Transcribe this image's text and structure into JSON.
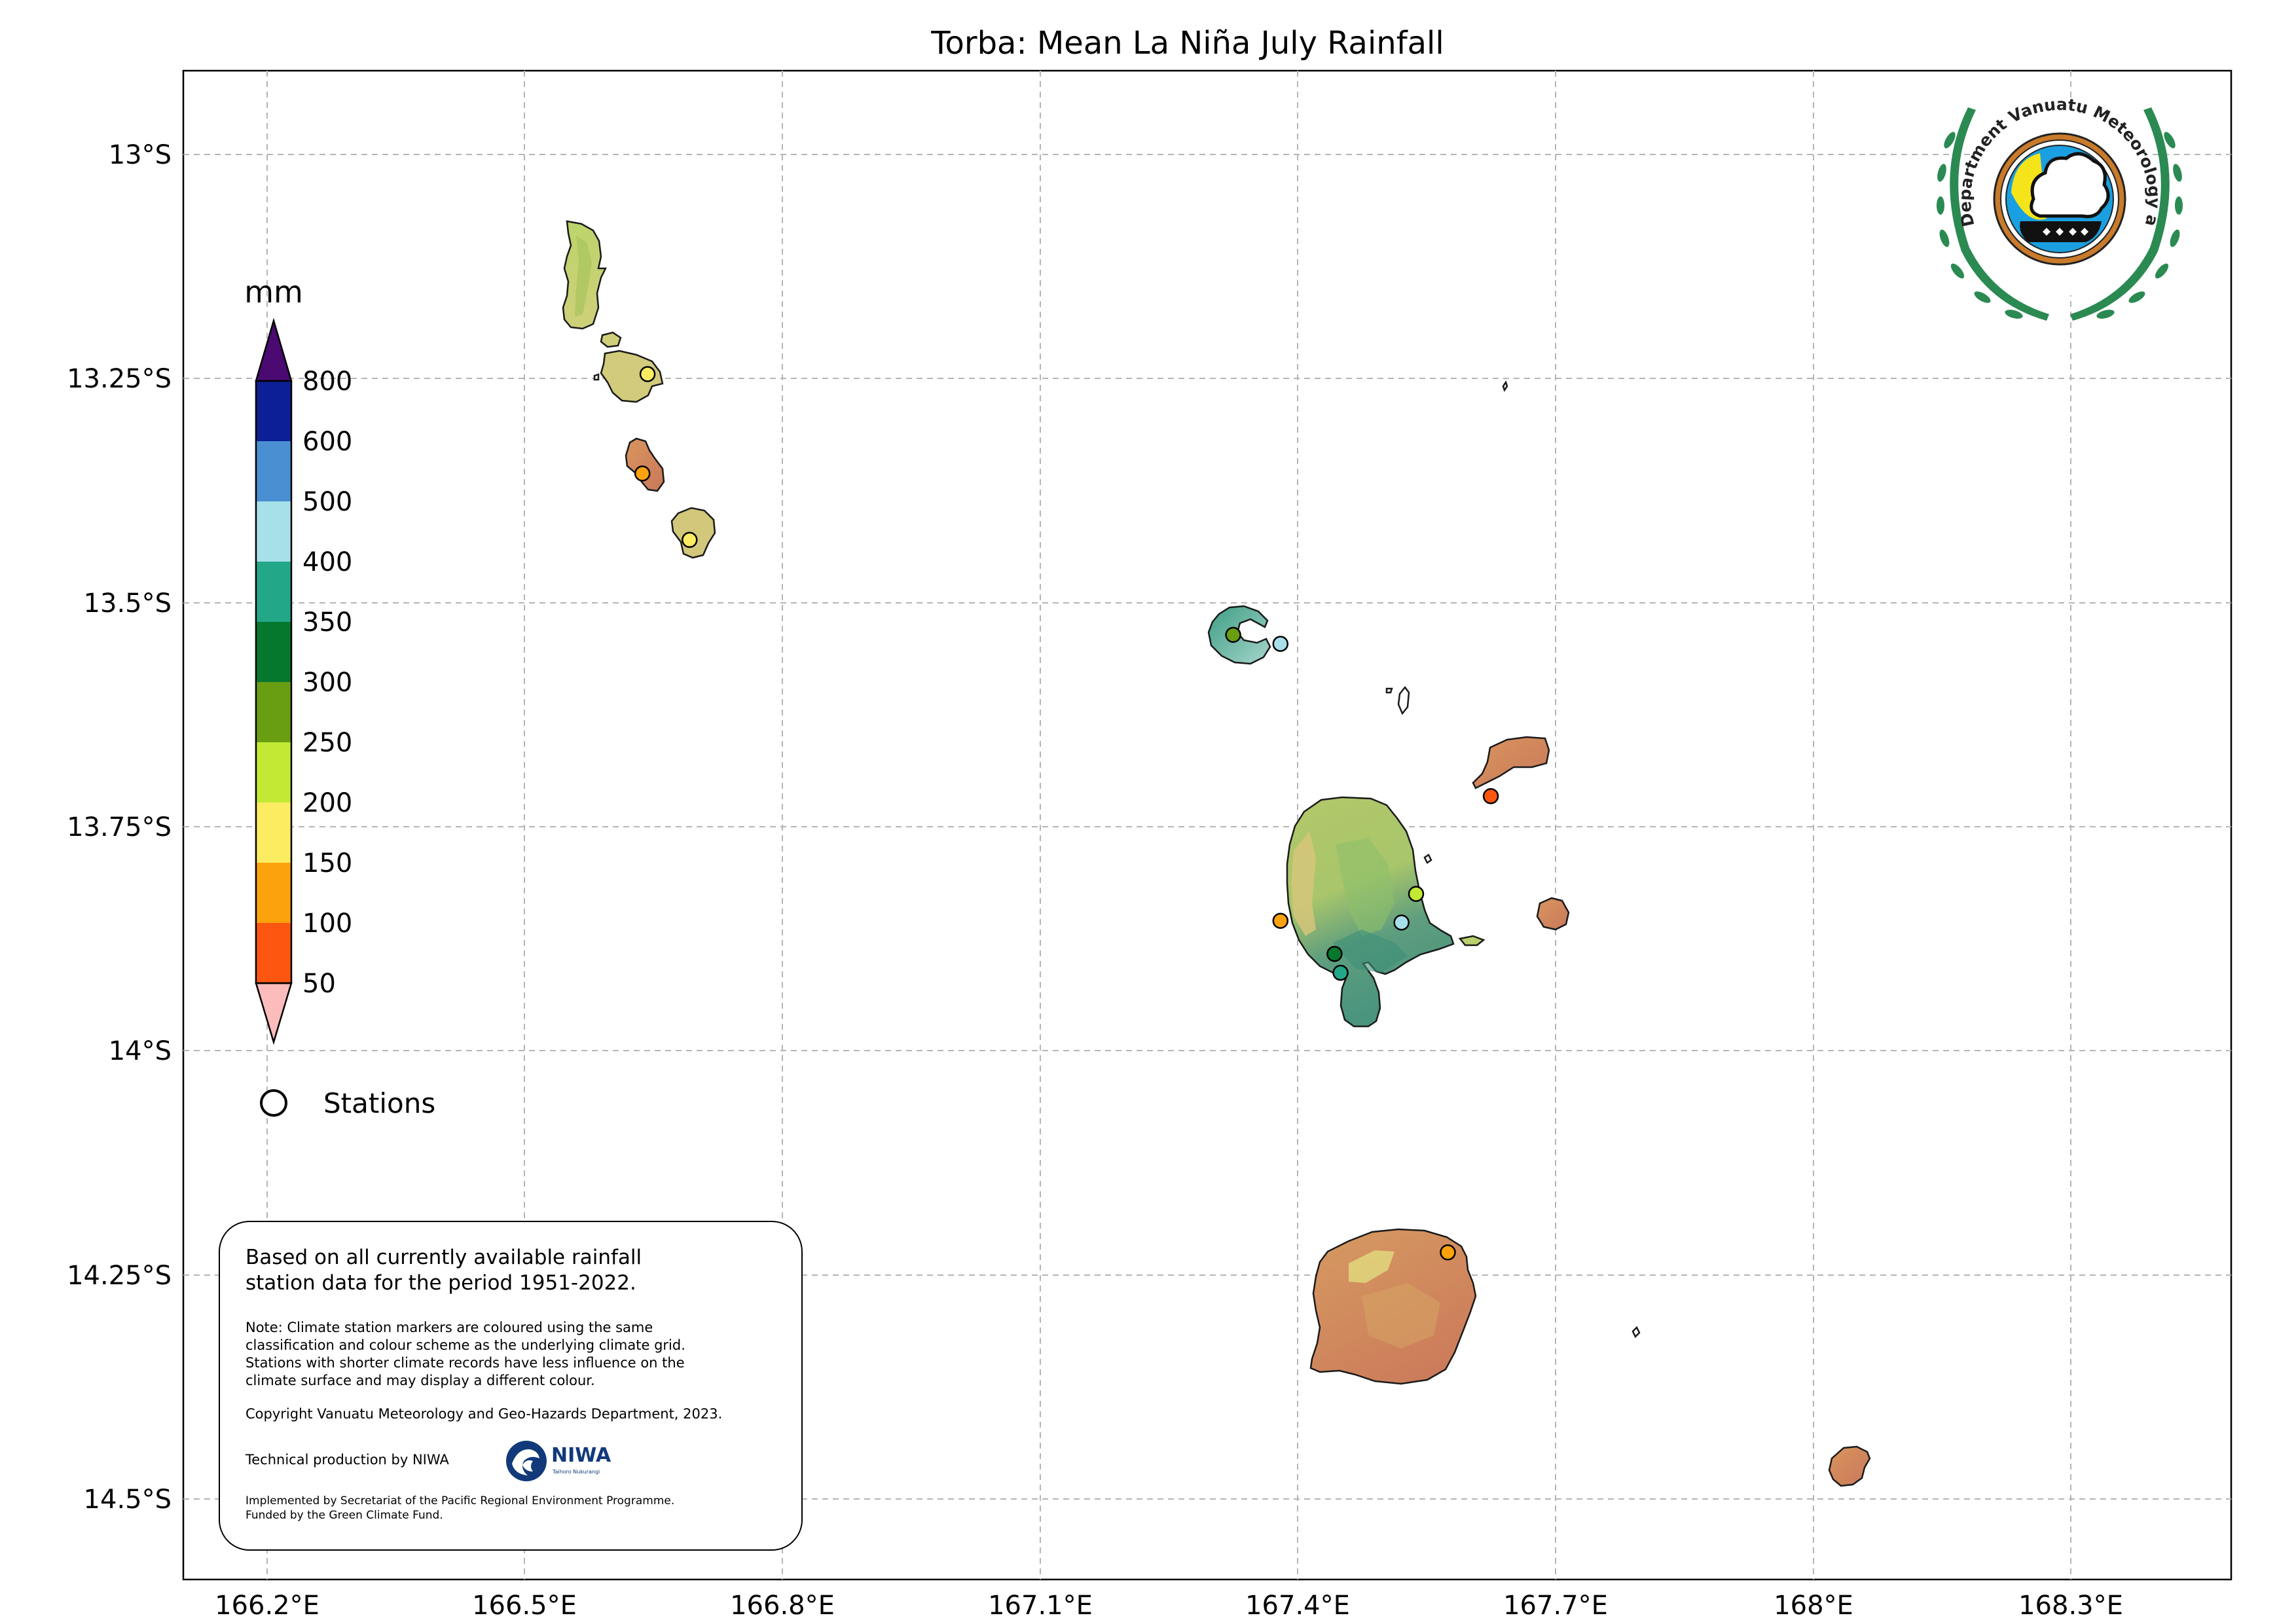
{
  "title": "Torba: Mean La Niña July Rainfall",
  "axes": {
    "x_ticks": [
      "166.2°E",
      "166.5°E",
      "166.8°E",
      "167.1°E",
      "167.4°E",
      "167.7°E",
      "168°E",
      "168.3°E"
    ],
    "y_ticks": [
      "13°S",
      "13.25°S",
      "13.5°S",
      "13.75°S",
      "14°S",
      "14.25°S",
      "14.5°S"
    ]
  },
  "colorbar": {
    "unit": "mm",
    "labels": [
      "800",
      "600",
      "500",
      "400",
      "350",
      "300",
      "250",
      "200",
      "150",
      "100",
      "50"
    ],
    "colors": {
      "above_800": "#4b0a72",
      "600_800": "#0c1f96",
      "500_600": "#4a8fd2",
      "400_500": "#a8e0ea",
      "350_400": "#22a888",
      "300_350": "#06782e",
      "250_300": "#6a9e12",
      "200_250": "#c2ea34",
      "150_200": "#fcec62",
      "100_150": "#fca20c",
      "50_100": "#fc5610",
      "below_50": "#fcbcbc"
    }
  },
  "legend": {
    "stations_label": "Stations",
    "marker_icon": "circle-marker-icon"
  },
  "note": {
    "main_line1": "Based on all currently available rainfall",
    "main_line2": "station data for the period 1951-2022.",
    "note_line1": "Note: Climate station markers are coloured using the same",
    "note_line2": "classification and colour scheme as the underlying climate grid.",
    "note_line3": "Stations with shorter climate records have less influence on the",
    "note_line4": "climate surface and may display a different colour.",
    "copyright": "Copyright Vanuatu Meteorology and Geo-Hazards Department, 2023.",
    "technical": "Technical production by NIWA",
    "implemented_line1": "Implemented by Secretariat of the Pacific Regional Environment Programme.",
    "implemented_line2": "Funded by the Green Climate Fund."
  },
  "niwa_logo": {
    "name": "NIWA",
    "tagline": "Taihoro Nukurangi",
    "icon": "niwa-logo-icon"
  },
  "vmgd_logo": {
    "text": "Department Vanuatu Meteorology and Geo-Hazards",
    "icon": "vmgd-logo-icon"
  },
  "stations": [
    {
      "lon": 166.643,
      "lat": -13.245,
      "class": "150_200"
    },
    {
      "lon": 166.637,
      "lat": -13.356,
      "class": "100_150"
    },
    {
      "lon": 166.692,
      "lat": -13.43,
      "class": "150_200"
    },
    {
      "lon": 167.325,
      "lat": -13.536,
      "class": "250_300"
    },
    {
      "lon": 167.38,
      "lat": -13.546,
      "class": "400_500"
    },
    {
      "lon": 167.625,
      "lat": -13.716,
      "class": "50_100"
    },
    {
      "lon": 167.538,
      "lat": -13.825,
      "class": "200_250"
    },
    {
      "lon": 167.521,
      "lat": -13.857,
      "class": "400_500"
    },
    {
      "lon": 167.38,
      "lat": -13.855,
      "class": "100_150"
    },
    {
      "lon": 167.443,
      "lat": -13.892,
      "class": "300_350"
    },
    {
      "lon": 167.45,
      "lat": -13.913,
      "class": "350_400"
    },
    {
      "lon": 167.575,
      "lat": -14.225,
      "class": "100_150"
    }
  ]
}
